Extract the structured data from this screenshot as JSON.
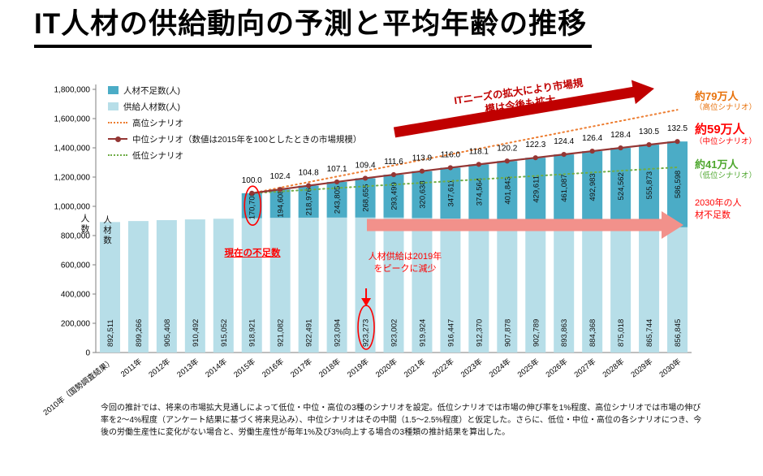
{
  "page": {
    "title": "IT人材の供給動向の予測と平均年齢の推移",
    "footnote": "今回の推計では、将来の市場拡大見通しによって低位・中位・高位の3種のシナリオを設定。低位シナリオでは市場の伸び率を1%程度、高位シナリオでは市場の伸び率を2～4%程度（アンケート結果に基づく将来見込み）、中位シナリオはその中間（1.5～2.5%程度）と仮定した。さらに、低位・中位・高位の各シナリオにつき、今後の労働生産性に変化がない場合と、労働生産性が毎年1%及び3%向上する場合の3種類の推計結果を算出した。"
  },
  "chart_data": {
    "type": "bar",
    "stacked": true,
    "title": "",
    "xlabel": "",
    "ylabel": "人数",
    "ylim": [
      0,
      1800000
    ],
    "ytick_step": 200000,
    "grid": false,
    "categories": [
      "2010年（国勢調査結果）",
      "2011年",
      "2012年",
      "2013年",
      "2014年",
      "2015年",
      "2016年",
      "2017年",
      "2018年",
      "2019年",
      "2020年",
      "2021年",
      "2022年",
      "2023年",
      "2024年",
      "2025年",
      "2026年",
      "2027年",
      "2028年",
      "2029年",
      "2030年"
    ],
    "series": [
      {
        "name": "供給人材数(人)",
        "color": "#B7DEE8",
        "values": [
          892511,
          899266,
          905408,
          910492,
          915052,
          918921,
          921082,
          922491,
          923094,
          923273,
          923002,
          919924,
          916447,
          912370,
          907878,
          902789,
          893863,
          884368,
          875018,
          865744,
          856845
        ]
      },
      {
        "name": "人材不足数(人)",
        "color": "#4BACC6",
        "values": [
          0,
          0,
          0,
          0,
          0,
          170700,
          194608,
          218976,
          243805,
          268655,
          293499,
          320638,
          347611,
          374564,
          401843,
          429611,
          461087,
          492983,
          524562,
          555873,
          586598
        ]
      }
    ],
    "index_labels": [
      "100.0",
      "102.4",
      "104.8",
      "107.1",
      "109.4",
      "111.6",
      "113.9",
      "116.0",
      "118.1",
      "120.2",
      "122.3",
      "124.4",
      "126.4",
      "128.4",
      "130.5",
      "132.5"
    ],
    "index_base_note": "数値は2015年を100としたときの市場規模",
    "scenarios": {
      "high": {
        "name": "高位シナリオ",
        "color": "#ED7D31",
        "style": "dotted",
        "start_year": "2015年",
        "end_total": 1660000
      },
      "mid": {
        "name": "中位シナリオ（数値は2015年を100としたときの市場規模）",
        "color": "#943634",
        "style": "solid-markers",
        "follows": "stack_total"
      },
      "low": {
        "name": "低位シナリオ",
        "color": "#70AD47",
        "style": "dotted",
        "start_year": "2015年",
        "end_total": 1266845
      }
    },
    "legend": [
      {
        "label": "人材不足数(人)"
      },
      {
        "label": "供給人材数(人)"
      },
      {
        "label": "高位シナリオ"
      },
      {
        "label": "中位シナリオ（数値は2015年を100としたときの市場規模）"
      },
      {
        "label": "低位シナリオ"
      }
    ],
    "annotations": {
      "market_growth": "ITニーズの拡大により市場規模は今後も拡大",
      "current_shortage": "現在の不足数",
      "supply_peak": "人材供給は2019年をピークに減少",
      "bar_area_label": "人材数",
      "shortage_2030": "2030年の人材不足数",
      "arrow_colors": {
        "market_growth": "#C00000",
        "supply_peak": "#F2918B"
      },
      "right_labels": [
        {
          "big": "約79万人",
          "small": "（高位シナリオ）",
          "color": "#E8720C"
        },
        {
          "big": "約59万人",
          "small": "（中位シナリオ）",
          "color": "#FF0000"
        },
        {
          "big": "約41万人",
          "small": "（低位シナリオ）",
          "color": "#4EA72E"
        }
      ]
    }
  }
}
